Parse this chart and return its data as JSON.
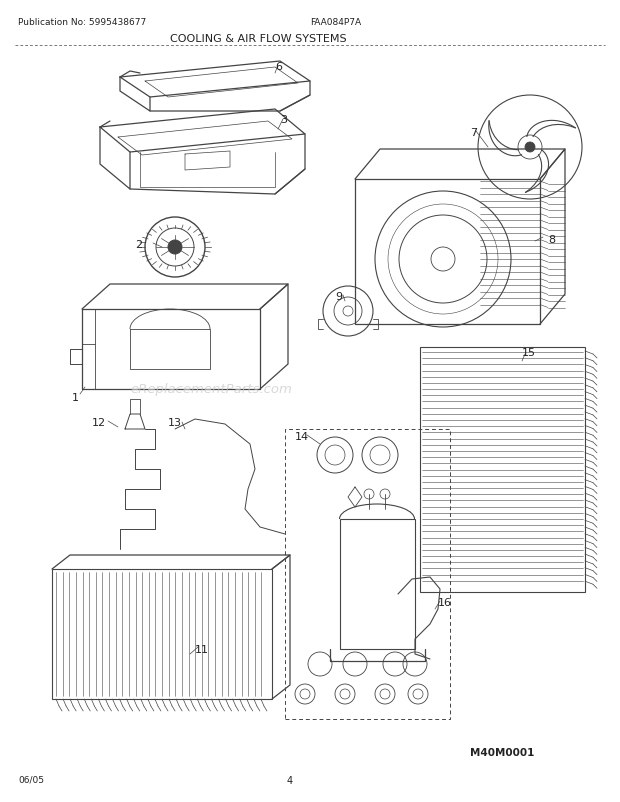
{
  "title": "COOLING & AIR FLOW SYSTEMS",
  "pub_no": "Publication No: 5995438677",
  "model": "FAA084P7A",
  "date": "06/05",
  "page": "4",
  "doc_id": "M40M0001",
  "watermark": "eReplacementParts.com",
  "bg_color": "#ffffff",
  "line_color": "#444444",
  "text_color": "#222222",
  "watermark_color": "#cccccc",
  "fig_w": 6.2,
  "fig_h": 8.03,
  "dpi": 100
}
